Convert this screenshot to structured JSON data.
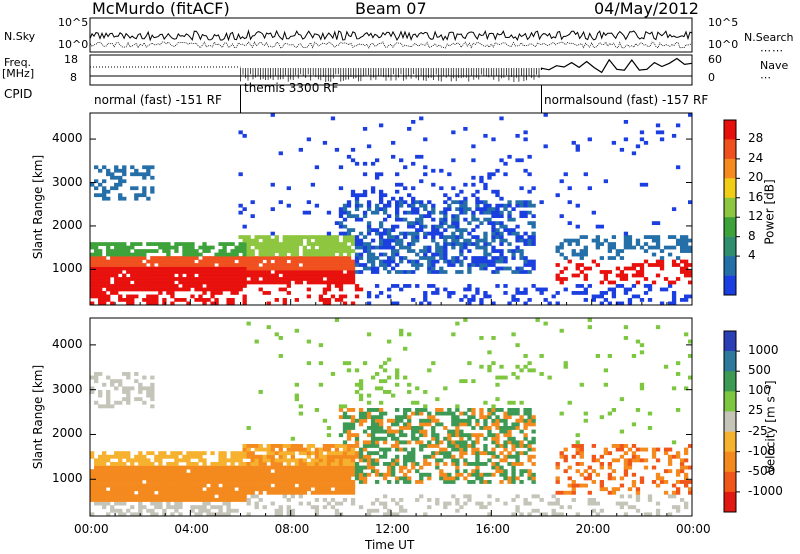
{
  "header": {
    "station": "McMurdo (fitACF)",
    "beam": "Beam 07",
    "date": "04/May/2012"
  },
  "summary": {
    "nsky_label": "N.Sky",
    "nsky_ticks": [
      "10^5",
      "10^0"
    ],
    "nsearch_label": "N.Search",
    "nsearch_ticks": [
      "10^5",
      "10^0"
    ],
    "freq_label_1": "Freq.",
    "freq_label_2": "[MHz]",
    "freq_ticks": [
      "18",
      "8"
    ],
    "nave_label": "Nave",
    "nave_ticks": [
      "60",
      "0"
    ],
    "cpid_label": "CPID",
    "cpid_segments": [
      {
        "label": "normal (fast) -151 RF",
        "start_hour": 0,
        "end_hour": 6
      },
      {
        "label": "themis 3300 RF",
        "start_hour": 6,
        "end_hour": 18
      },
      {
        "label": "normalsound (fast) -157 RF",
        "start_hour": 18,
        "end_hour": 24
      }
    ]
  },
  "chart_data": [
    {
      "type": "heatmap",
      "parameter": "Power",
      "ylabel": "Slant Range [km]",
      "yticks": [
        "1000",
        "2000",
        "3000",
        "4000"
      ],
      "ylim": [
        180,
        4600
      ],
      "xlim": [
        0,
        24
      ],
      "colorbar_label": "Power [dB]",
      "colorbar_ticks": [
        "28",
        "24",
        "20",
        "16",
        "12",
        "8",
        "4"
      ],
      "colorbar_colors": [
        "#e8100c",
        "#f0501e",
        "#f68a1e",
        "#f2cd18",
        "#8dc63f",
        "#3da23a",
        "#2f8e6e",
        "#246fa8",
        "#1a3ee0"
      ]
    },
    {
      "type": "heatmap",
      "parameter": "Velocity",
      "ylabel": "Slant Range [km]",
      "yticks": [
        "1000",
        "2000",
        "3000",
        "4000"
      ],
      "ylim": [
        180,
        4600
      ],
      "xlim": [
        0,
        24
      ],
      "xticks": [
        "00:00",
        "04:00",
        "08:00",
        "12:00",
        "16:00",
        "20:00",
        "00:00"
      ],
      "xlabel": "Time UT",
      "colorbar_label": "Velocity [m s⁻¹]",
      "colorbar_ticks": [
        "1000",
        "500",
        "100",
        "25",
        "-25",
        "-100",
        "-500",
        "-1000"
      ],
      "colorbar_colors": [
        "#2a3fb5",
        "#2f7a9a",
        "#3c9a55",
        "#7cc640",
        "#c4c4b8",
        "#f6b22e",
        "#f48a1e",
        "#f0561a",
        "#e01a12"
      ]
    }
  ]
}
